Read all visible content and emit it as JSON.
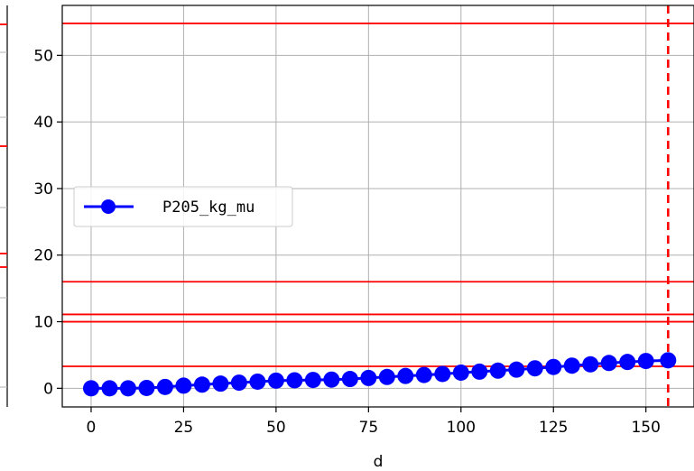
{
  "chart_data": {
    "type": "line",
    "xlabel": "d",
    "ylabel": "",
    "xlim": [
      -7.8,
      163
    ],
    "ylim": [
      -2.8,
      57.5
    ],
    "xticks": [
      0,
      25,
      50,
      75,
      100,
      125,
      150
    ],
    "yticks": [
      0,
      10,
      20,
      30,
      40,
      50
    ],
    "grid": true,
    "legend_position": "center-left",
    "series": [
      {
        "name": "P205_kg_mu",
        "color": "#0000ff",
        "marker": "circle",
        "x": [
          0,
          5,
          10,
          15,
          20,
          25,
          30,
          35,
          40,
          45,
          50,
          55,
          60,
          65,
          70,
          75,
          80,
          85,
          90,
          95,
          100,
          105,
          110,
          115,
          120,
          125,
          130,
          135,
          140,
          145,
          150,
          156
        ],
        "y": [
          0.0,
          0.0,
          0.0,
          0.05,
          0.2,
          0.4,
          0.55,
          0.7,
          0.85,
          1.0,
          1.15,
          1.2,
          1.25,
          1.3,
          1.4,
          1.55,
          1.7,
          1.85,
          2.0,
          2.15,
          2.35,
          2.5,
          2.65,
          2.8,
          3.0,
          3.2,
          3.4,
          3.6,
          3.8,
          3.95,
          4.1,
          4.2
        ]
      }
    ],
    "hlines": [
      {
        "y": 3.3,
        "color": "#ff0000",
        "style": "solid"
      },
      {
        "y": 10.0,
        "color": "#ff0000",
        "style": "solid"
      },
      {
        "y": 11.1,
        "color": "#ff0000",
        "style": "solid"
      },
      {
        "y": 16.0,
        "color": "#ff0000",
        "style": "solid"
      },
      {
        "y": 54.8,
        "color": "#ff0000",
        "style": "solid"
      }
    ],
    "vlines": [
      {
        "x": 156,
        "color": "#ff0000",
        "style": "dashed"
      }
    ]
  }
}
